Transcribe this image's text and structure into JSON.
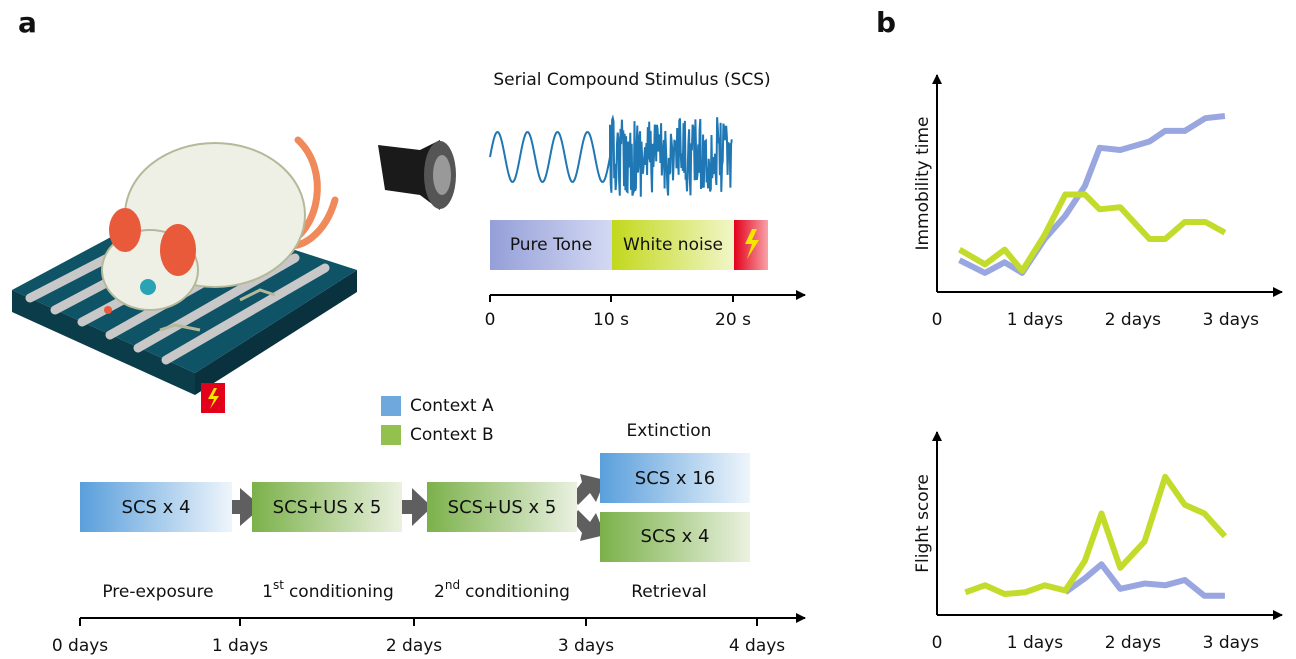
{
  "figure": {
    "panel_labels": [
      "a",
      "b"
    ],
    "stimulus": {
      "title": "Serial Compound Stimulus (SCS)",
      "segments": [
        "Pure Tone",
        "White noise"
      ],
      "axis_ticks": [
        "0",
        "10 s",
        "20 s"
      ]
    },
    "legend": [
      "Context A",
      "Context B"
    ],
    "extinction_label": "Extinction",
    "boxes": [
      "SCS x 4",
      "SCS+US x 5",
      "SCS+US x 5",
      "SCS x 16",
      "SCS x 4"
    ],
    "phases": [
      {
        "text": "Pre-exposure"
      },
      {
        "prefix": "1",
        "sup": "st",
        "text": "conditioning"
      },
      {
        "prefix": "2",
        "sup": "nd",
        "text": "conditioning"
      },
      {
        "text": "Retrieval"
      }
    ],
    "timeline_ticks": [
      "0 days",
      "1 days",
      "2 days",
      "3 days",
      "4 days"
    ]
  },
  "chart_data": [
    {
      "type": "line",
      "y_label": "Immobility time",
      "x": [
        0.23,
        0.49,
        0.69,
        0.87,
        1.1,
        1.31,
        1.51,
        1.66,
        1.87,
        2.17,
        2.33,
        2.53,
        2.74,
        2.94
      ],
      "xlim": [
        0,
        3.4
      ],
      "xticks": [
        0,
        {
          "value": 1,
          "label": "1 days"
        },
        {
          "value": 2,
          "label": "2 days"
        },
        {
          "value": 3,
          "label": "3 days"
        }
      ],
      "ylim": [
        0,
        1
      ],
      "series": [
        {
          "color": "#9aa6e0",
          "values": [
            0.15,
            0.09,
            0.14,
            0.09,
            0.25,
            0.36,
            0.5,
            0.68,
            0.67,
            0.71,
            0.76,
            0.76,
            0.82,
            0.83
          ]
        },
        {
          "color": "#c3dc2c",
          "values": [
            0.2,
            0.13,
            0.2,
            0.1,
            0.27,
            0.46,
            0.46,
            0.39,
            0.4,
            0.25,
            0.25,
            0.33,
            0.33,
            0.28
          ]
        }
      ]
    },
    {
      "type": "line",
      "y_label": "Flight score",
      "x": [
        0.29,
        0.49,
        0.69,
        0.9,
        1.1,
        1.31,
        1.51,
        1.68,
        1.87,
        2.12,
        2.33,
        2.53,
        2.73,
        2.94
      ],
      "xlim": [
        0,
        3.4
      ],
      "xticks": [
        0,
        {
          "value": 1,
          "label": "1 days"
        },
        {
          "value": 2,
          "label": "2 days"
        },
        {
          "value": 3,
          "label": "3 days"
        }
      ],
      "ylim": [
        0,
        1
      ],
      "series": [
        {
          "color": "#9aa6e0",
          "values": [
            null,
            null,
            null,
            null,
            null,
            0.13,
            0.21,
            0.29,
            0.15,
            0.18,
            0.17,
            0.2,
            0.11,
            0.11
          ]
        },
        {
          "color": "#c3dc2c",
          "values": [
            0.13,
            0.17,
            0.12,
            0.13,
            0.17,
            0.14,
            0.31,
            0.58,
            0.27,
            0.42,
            0.79,
            0.63,
            0.58,
            0.45
          ]
        }
      ]
    }
  ]
}
